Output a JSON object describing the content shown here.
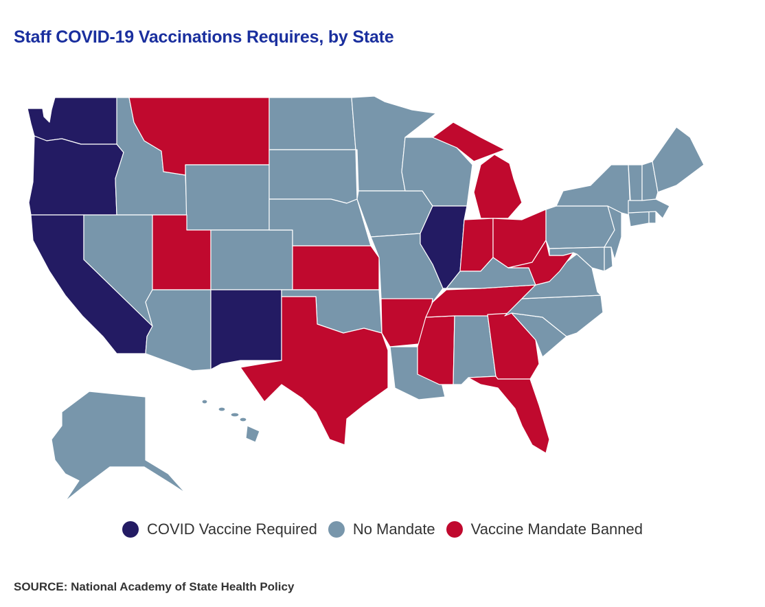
{
  "title": "Staff COVID-19 Vaccinations Requires, by State",
  "source": "SOURCE: National Academy of State Health Policy",
  "colors": {
    "required": "#231b63",
    "none": "#7896ab",
    "banned": "#c0092e"
  },
  "legend": [
    {
      "key": "required",
      "label": "COVID Vaccine Required"
    },
    {
      "key": "none",
      "label": "No Mandate"
    },
    {
      "key": "banned",
      "label": "Vaccine Mandate Banned"
    }
  ],
  "states": {
    "WA": "required",
    "OR": "required",
    "CA": "required",
    "NM": "required",
    "IL": "required",
    "MT": "banned",
    "UT": "banned",
    "KS": "banned",
    "TX": "banned",
    "AR": "banned",
    "MS": "banned",
    "TN": "banned",
    "GA": "banned",
    "FL": "banned",
    "IN": "banned",
    "OH": "banned",
    "WV": "banned",
    "MI": "banned",
    "ID": "none",
    "NV": "none",
    "AZ": "none",
    "WY": "none",
    "CO": "none",
    "ND": "none",
    "SD": "none",
    "NE": "none",
    "OK": "none",
    "MN": "none",
    "IA": "none",
    "MO": "none",
    "WI": "none",
    "LA": "none",
    "AL": "none",
    "KY": "none",
    "VA": "none",
    "NC": "none",
    "SC": "none",
    "PA": "none",
    "NY": "none",
    "VT": "none",
    "NH": "none",
    "ME": "none",
    "MA": "none",
    "CT": "none",
    "RI": "none",
    "NJ": "none",
    "DE": "none",
    "MD": "none",
    "AK": "none",
    "HI": "none"
  }
}
